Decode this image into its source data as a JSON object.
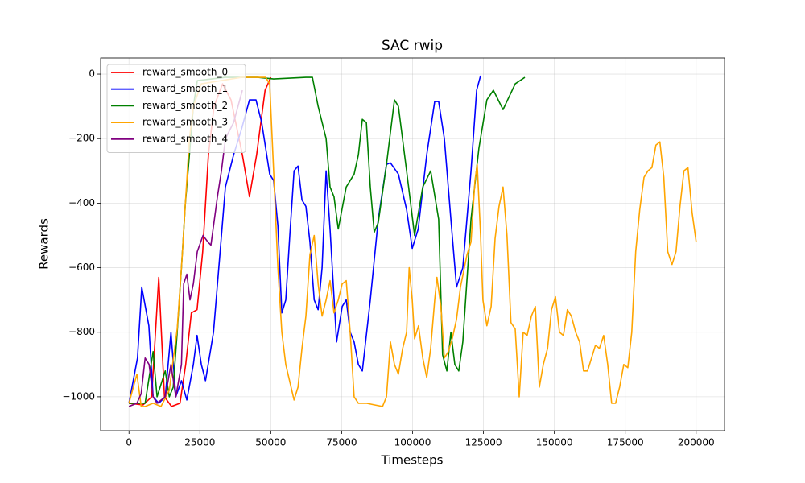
{
  "chart_data": {
    "type": "line",
    "title": "SAC rwip",
    "x_label": "Timesteps",
    "y_label": "Rewards",
    "xlim": [
      -10000,
      210000
    ],
    "ylim": [
      -1105,
      50
    ],
    "xticks": [
      0,
      25000,
      50000,
      75000,
      100000,
      125000,
      150000,
      175000,
      200000
    ],
    "yticks": [
      {
        "value": -1000,
        "label": "−1000"
      },
      {
        "value": -800,
        "label": "−800"
      },
      {
        "value": -600,
        "label": "−600"
      },
      {
        "value": -400,
        "label": "−400"
      },
      {
        "value": -200,
        "label": "−200"
      },
      0
    ],
    "grid": true,
    "legend": "upper left",
    "series": [
      {
        "name": "reward_smooth_0",
        "color": "red",
        "x": [
          0,
          5000,
          8000,
          10500,
          12500,
          15000,
          18000,
          20000,
          22000,
          24000,
          26000,
          28000,
          30000,
          33000,
          36000,
          40000,
          42500,
          45000,
          48000,
          50000
        ],
        "values": [
          -1020,
          -1025,
          -1000,
          -630,
          -1000,
          -1030,
          -1020,
          -900,
          -740,
          -730,
          -550,
          -250,
          -100,
          -30,
          -80,
          -250,
          -380,
          -250,
          -50,
          -10
        ]
      },
      {
        "name": "reward_smooth_1",
        "color": "blue",
        "x": [
          0,
          3000,
          4500,
          7000,
          8500,
          10500,
          12800,
          14800,
          16500,
          18500,
          20400,
          22700,
          24000,
          25500,
          27000,
          29800,
          32600,
          34000,
          36900,
          39700,
          42500,
          44800,
          46800,
          49600,
          51000,
          52500,
          53900,
          55300,
          56700,
          58200,
          59600,
          61000,
          62400,
          63800,
          65300,
          66700,
          68100,
          69500,
          70900,
          73200,
          75200,
          76600,
          78000,
          79400,
          80900,
          82300,
          85100,
          87900,
          90800,
          92200,
          95000,
          97900,
          99900,
          102000,
          105000,
          107800,
          109200,
          111200,
          113500,
          115500,
          117700,
          120600,
          122600,
          124000
        ],
        "values": [
          -1020,
          -880,
          -660,
          -780,
          -1000,
          -1020,
          -1000,
          -800,
          -1000,
          -950,
          -1010,
          -900,
          -810,
          -900,
          -950,
          -800,
          -500,
          -350,
          -250,
          -170,
          -80,
          -80,
          -150,
          -310,
          -330,
          -470,
          -740,
          -700,
          -500,
          -300,
          -285,
          -390,
          -410,
          -520,
          -700,
          -730,
          -600,
          -300,
          -480,
          -830,
          -720,
          -700,
          -800,
          -830,
          -900,
          -920,
          -700,
          -450,
          -280,
          -275,
          -310,
          -420,
          -540,
          -480,
          -250,
          -85,
          -85,
          -200,
          -450,
          -660,
          -600,
          -300,
          -50,
          -5
        ]
      },
      {
        "name": "reward_smooth_2",
        "color": "green",
        "x": [
          0,
          5700,
          8500,
          9900,
          12800,
          14200,
          15600,
          17000,
          18500,
          19900,
          21300,
          22700,
          24100,
          34000,
          45400,
          51000,
          62400,
          64700,
          66700,
          69500,
          70900,
          72300,
          73800,
          76600,
          79400,
          80900,
          82300,
          83700,
          85100,
          86500,
          87900,
          90800,
          93600,
          95000,
          97900,
          100700,
          103600,
          106400,
          109200,
          110600,
          112100,
          113500,
          114900,
          116300,
          117700,
          120600,
          123400,
          126200,
          128500,
          131900,
          136200,
          139600
        ],
        "values": [
          -1020,
          -1020,
          -860,
          -1000,
          -920,
          -1000,
          -970,
          -800,
          -600,
          -400,
          -250,
          -100,
          -20,
          -10,
          -10,
          -15,
          -10,
          -10,
          -100,
          -200,
          -350,
          -380,
          -480,
          -350,
          -310,
          -250,
          -140,
          -150,
          -350,
          -490,
          -460,
          -280,
          -80,
          -100,
          -300,
          -500,
          -350,
          -300,
          -450,
          -870,
          -920,
          -800,
          -900,
          -920,
          -830,
          -450,
          -230,
          -80,
          -50,
          -110,
          -30,
          -10
        ]
      },
      {
        "name": "reward_smooth_3",
        "color": "orange",
        "x": [
          0,
          2800,
          4300,
          5700,
          8500,
          11300,
          14200,
          17000,
          18500,
          19900,
          21300,
          22700,
          25500,
          39700,
          48200,
          49600,
          51000,
          52500,
          53900,
          55300,
          58200,
          59600,
          61000,
          62400,
          63800,
          65300,
          66700,
          68100,
          69500,
          70900,
          72300,
          73800,
          75200,
          76600,
          78000,
          79400,
          80900,
          83700,
          86500,
          89400,
          90800,
          92200,
          93600,
          95000,
          96500,
          97900,
          98800,
          99900,
          100700,
          102100,
          103600,
          105000,
          106400,
          107800,
          108600,
          110000,
          111200,
          112600,
          114000,
          115500,
          116900,
          119200,
          120600,
          122000,
          122800,
          124000,
          124800,
          126200,
          127700,
          129100,
          130500,
          131900,
          133300,
          134700,
          136200,
          137600,
          139000,
          140400,
          141900,
          143300,
          144700,
          146100,
          147600,
          149000,
          150400,
          151800,
          153200,
          154600,
          156000,
          157500,
          158900,
          160300,
          161700,
          163100,
          164500,
          165900,
          167400,
          168800,
          170200,
          171600,
          173000,
          174500,
          175900,
          177300,
          178700,
          180100,
          181600,
          183000,
          184400,
          185800,
          187200,
          188600,
          190000,
          191500,
          192900,
          194300,
          195700,
          197100,
          198600,
          200000
        ],
        "values": [
          -1020,
          -930,
          -1030,
          -1030,
          -1020,
          -1030,
          -980,
          -790,
          -600,
          -400,
          -200,
          -100,
          -30,
          -10,
          -10,
          -30,
          -300,
          -600,
          -800,
          -900,
          -1010,
          -970,
          -850,
          -750,
          -560,
          -500,
          -650,
          -750,
          -700,
          -640,
          -740,
          -700,
          -650,
          -640,
          -800,
          -1000,
          -1020,
          -1020,
          -1025,
          -1030,
          -1000,
          -830,
          -900,
          -930,
          -850,
          -800,
          -600,
          -700,
          -820,
          -780,
          -880,
          -940,
          -850,
          -700,
          -630,
          -720,
          -880,
          -860,
          -820,
          -760,
          -660,
          -560,
          -520,
          -330,
          -280,
          -500,
          -700,
          -780,
          -720,
          -510,
          -410,
          -350,
          -500,
          -770,
          -790,
          -1000,
          -800,
          -810,
          -750,
          -720,
          -970,
          -900,
          -850,
          -730,
          -690,
          -800,
          -810,
          -730,
          -750,
          -800,
          -830,
          -920,
          -920,
          -880,
          -840,
          -850,
          -810,
          -900,
          -1020,
          -1020,
          -970,
          -900,
          -910,
          -800,
          -550,
          -420,
          -320,
          -300,
          -290,
          -220,
          -210,
          -320,
          -550,
          -590,
          -550,
          -410,
          -300,
          -290,
          -430,
          -520
        ]
      },
      {
        "name": "reward_smooth_4",
        "color": "purple",
        "x": [
          0,
          2800,
          4300,
          5700,
          7100,
          8500,
          9900,
          12800,
          14800,
          16500,
          18500,
          19300,
          20400,
          21500,
          22700,
          24100,
          26100,
          27800,
          28900,
          31200,
          32600,
          34000,
          36900,
          40000
        ],
        "values": [
          -1030,
          -1020,
          -990,
          -880,
          -900,
          -1000,
          -1020,
          -1000,
          -900,
          -1000,
          -900,
          -650,
          -620,
          -700,
          -650,
          -550,
          -500,
          -520,
          -530,
          -380,
          -300,
          -200,
          -150,
          -50
        ]
      }
    ]
  }
}
